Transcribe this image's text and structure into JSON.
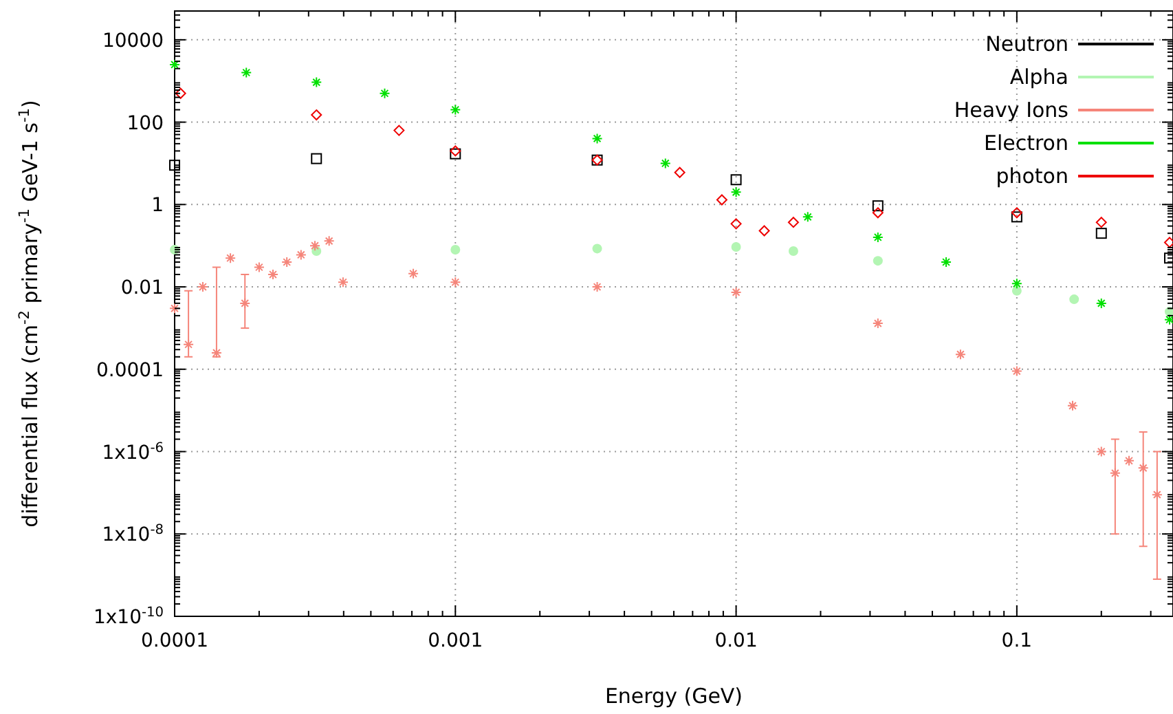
{
  "chart_data": {
    "type": "scatter",
    "xlabel": "Energy (GeV)",
    "ylabel": "differential flux (cm$^{-2}$ primary$^{-1}$ GeV-1 s$^{-1}$)",
    "log": "xy",
    "grid": true,
    "legend": "top right",
    "xlim": [
      0.0001,
      0.36
    ],
    "ylim": [
      1e-10,
      50000
    ],
    "xticks": [
      0.0001,
      0.001,
      0.01,
      0.1
    ],
    "yticks": [
      {
        "value": 1e-10,
        "label": "1x10$^{-10}$"
      },
      {
        "value": 1e-08,
        "label": "1x10$^{-8}$"
      },
      {
        "value": 1e-06,
        "label": "1x10$^{-6}$"
      },
      0.0001,
      0.01,
      1,
      100,
      10000
    ],
    "series": [
      {
        "name": "Neutron",
        "color": "#000000",
        "marker": "square",
        "x": [
          0.0001,
          0.00032,
          0.001,
          0.0032,
          0.01,
          0.032,
          0.1,
          0.2,
          0.35
        ],
        "values": [
          9,
          13,
          17,
          12,
          4,
          0.93,
          0.5,
          0.2,
          0.05
        ]
      },
      {
        "name": "Alpha",
        "color": "#b3f5b3",
        "marker": "circle",
        "x": [
          0.0001,
          0.00032,
          0.001,
          0.0032,
          0.01,
          0.016,
          0.032,
          0.1,
          0.16,
          0.35
        ],
        "values": [
          0.08,
          0.074,
          0.08,
          0.085,
          0.093,
          0.074,
          0.043,
          0.008,
          0.005,
          0.0025
        ]
      },
      {
        "name": "Heavy Ions",
        "color": "#f5857a",
        "marker": "cross",
        "x": [
          0.0001,
          0.000112,
          0.000126,
          0.000141,
          0.000158,
          0.000178,
          0.0002,
          0.000224,
          0.000251,
          0.000282,
          0.000316,
          0.000355,
          0.000398,
          0.000708,
          0.001,
          0.0032,
          0.01,
          0.032,
          0.063,
          0.1,
          0.158,
          0.2,
          0.224,
          0.251,
          0.282,
          0.316
        ],
        "values": [
          0.003,
          0.0004,
          0.01,
          0.00025,
          0.05,
          0.004,
          0.03,
          0.02,
          0.04,
          0.06,
          0.1,
          0.13,
          0.013,
          0.021,
          0.013,
          0.01,
          0.0074,
          0.0013,
          0.00023,
          9e-05,
          1.3e-05,
          1e-06,
          3e-07,
          6e-07,
          4e-07,
          9e-08
        ],
        "errors": [
          null,
          [
            0.0002,
            0.008
          ],
          null,
          [
            0.0002,
            0.03
          ],
          null,
          [
            0.001,
            0.02
          ],
          null,
          null,
          null,
          null,
          null,
          null,
          null,
          null,
          null,
          null,
          null,
          null,
          null,
          null,
          null,
          null,
          [
            1e-08,
            2e-06
          ],
          null,
          [
            5e-09,
            3e-06
          ],
          [
            8e-10,
            1e-06
          ]
        ]
      },
      {
        "name": "Electron",
        "color": "#00e000",
        "marker": "cross",
        "x": [
          0.0001,
          0.00018,
          0.00032,
          0.00056,
          0.001,
          0.0032,
          0.0056,
          0.01,
          0.018,
          0.032,
          0.056,
          0.1,
          0.2,
          0.35
        ],
        "values": [
          2500,
          1600,
          930,
          500,
          200,
          40,
          10,
          2,
          0.5,
          0.16,
          0.04,
          0.012,
          0.004,
          0.0016
        ]
      },
      {
        "name": "photon",
        "color": "#ee0000",
        "marker": "diamond",
        "x": [
          0.000105,
          0.00032,
          0.00063,
          0.001,
          0.0032,
          0.0063,
          0.0089,
          0.01,
          0.0126,
          0.016,
          0.032,
          0.1,
          0.2,
          0.35
        ],
        "values": [
          500,
          150,
          63,
          20,
          12,
          6,
          1.3,
          0.34,
          0.23,
          0.37,
          0.63,
          0.63,
          0.37,
          0.12
        ]
      }
    ]
  }
}
